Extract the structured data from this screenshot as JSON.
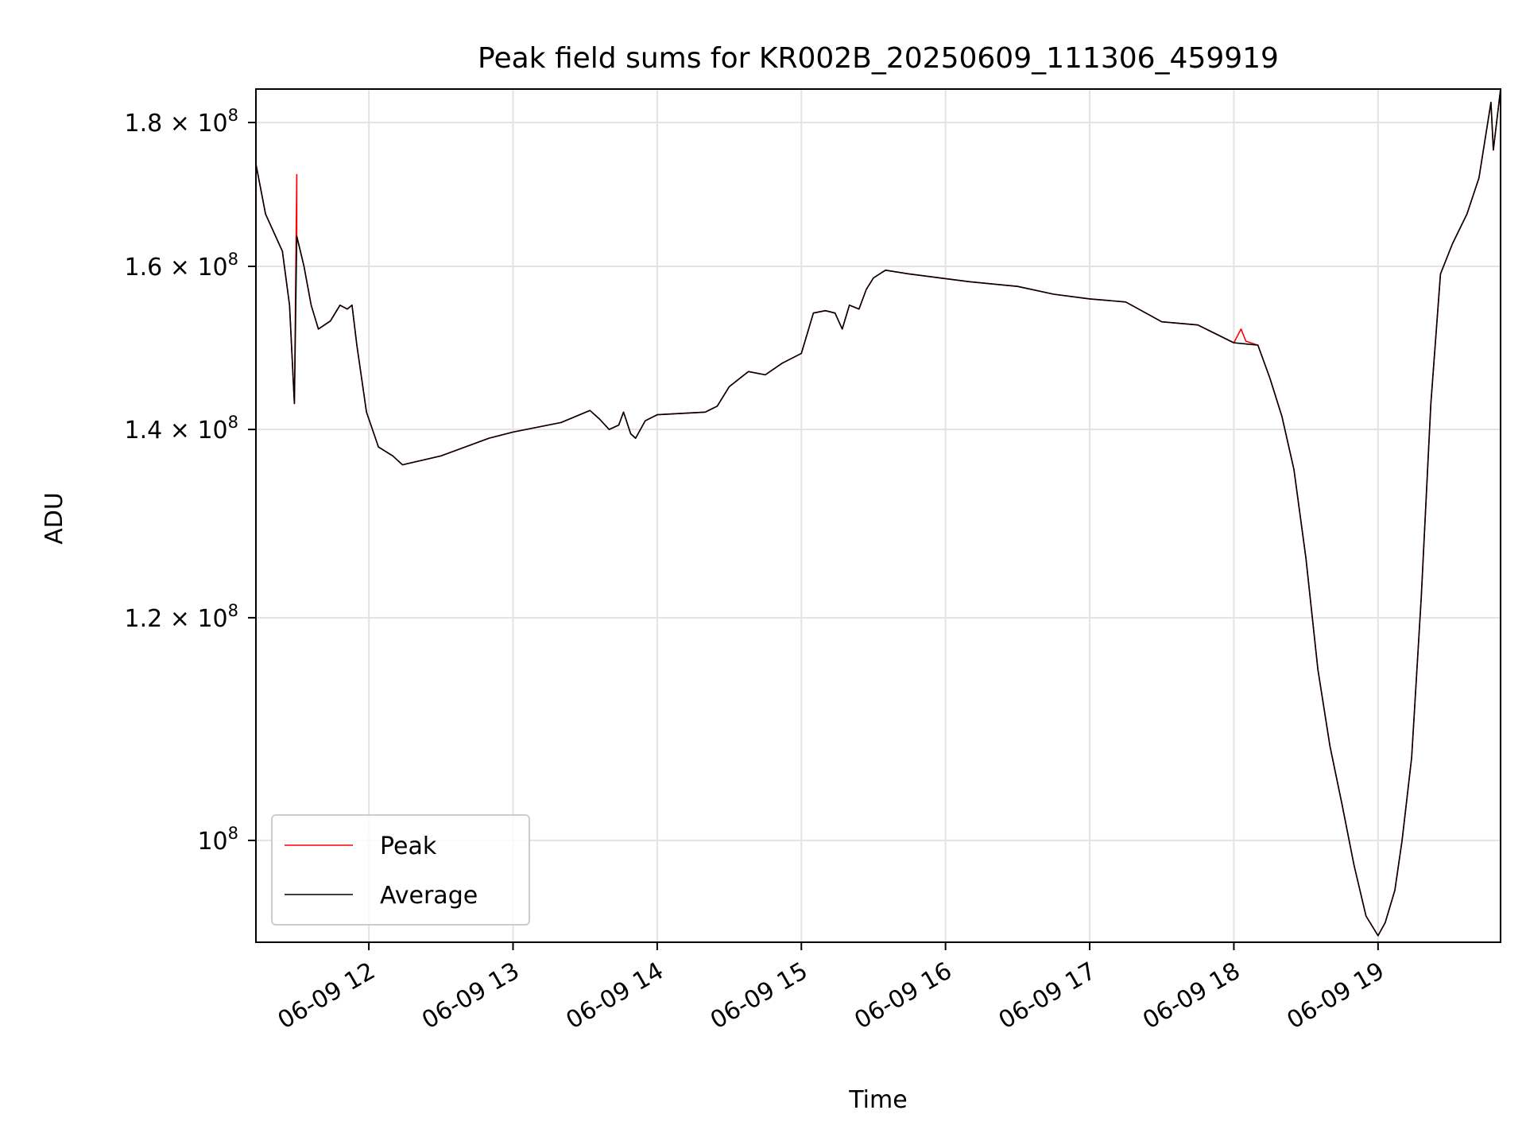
{
  "chart_data": {
    "type": "line",
    "title": "Peak field sums for KR002B_20250609_111306_459919",
    "xlabel": "Time",
    "ylabel": "ADU",
    "y_scale": "log",
    "xlim": [
      "2025-06-09 11:13",
      "2025-06-09 19:51"
    ],
    "ylim": [
      92000000,
      185000000
    ],
    "x_ticks": [
      {
        "value": "2025-06-09 12:00",
        "label": "06-09 12"
      },
      {
        "value": "2025-06-09 13:00",
        "label": "06-09 13"
      },
      {
        "value": "2025-06-09 14:00",
        "label": "06-09 14"
      },
      {
        "value": "2025-06-09 15:00",
        "label": "06-09 15"
      },
      {
        "value": "2025-06-09 16:00",
        "label": "06-09 16"
      },
      {
        "value": "2025-06-09 17:00",
        "label": "06-09 17"
      },
      {
        "value": "2025-06-09 18:00",
        "label": "06-09 18"
      },
      {
        "value": "2025-06-09 19:00",
        "label": "06-09 19"
      }
    ],
    "y_ticks": [
      {
        "value": 100000000,
        "mantissa": "",
        "exponent": "8"
      },
      {
        "value": 120000000,
        "mantissa": "1.2",
        "exponent": "8"
      },
      {
        "value": 140000000,
        "mantissa": "1.4",
        "exponent": "8"
      },
      {
        "value": 160000000,
        "mantissa": "1.6",
        "exponent": "8"
      },
      {
        "value": 180000000,
        "mantissa": "1.8",
        "exponent": "8"
      }
    ],
    "grid": true,
    "legend_position": "lower-left",
    "series": [
      {
        "name": "Average",
        "color": "#000000",
        "points": [
          [
            "2025-06-09 11:13",
            174000000
          ],
          [
            "2025-06-09 11:17",
            167000000
          ],
          [
            "2025-06-09 11:24",
            162000000
          ],
          [
            "2025-06-09 11:27",
            155000000
          ],
          [
            "2025-06-09 11:29",
            143000000
          ],
          [
            "2025-06-09 11:30",
            164000000
          ],
          [
            "2025-06-09 11:33",
            160000000
          ],
          [
            "2025-06-09 11:36",
            155000000
          ],
          [
            "2025-06-09 11:39",
            152000000
          ],
          [
            "2025-06-09 11:44",
            153000000
          ],
          [
            "2025-06-09 11:48",
            155000000
          ],
          [
            "2025-06-09 11:51",
            154500000
          ],
          [
            "2025-06-09 11:53",
            155000000
          ],
          [
            "2025-06-09 11:55",
            150000000
          ],
          [
            "2025-06-09 11:59",
            142000000
          ],
          [
            "2025-06-09 12:04",
            138000000
          ],
          [
            "2025-06-09 12:10",
            137000000
          ],
          [
            "2025-06-09 12:14",
            136000000
          ],
          [
            "2025-06-09 12:30",
            137000000
          ],
          [
            "2025-06-09 12:50",
            139000000
          ],
          [
            "2025-06-09 13:00",
            139700000
          ],
          [
            "2025-06-09 13:20",
            140800000
          ],
          [
            "2025-06-09 13:32",
            142200000
          ],
          [
            "2025-06-09 13:36",
            141200000
          ],
          [
            "2025-06-09 13:40",
            140000000
          ],
          [
            "2025-06-09 13:44",
            140500000
          ],
          [
            "2025-06-09 13:46",
            142000000
          ],
          [
            "2025-06-09 13:49",
            139500000
          ],
          [
            "2025-06-09 13:51",
            139000000
          ],
          [
            "2025-06-09 13:55",
            141000000
          ],
          [
            "2025-06-09 14:00",
            141700000
          ],
          [
            "2025-06-09 14:20",
            142000000
          ],
          [
            "2025-06-09 14:25",
            142700000
          ],
          [
            "2025-06-09 14:30",
            145000000
          ],
          [
            "2025-06-09 14:38",
            146800000
          ],
          [
            "2025-06-09 14:45",
            146400000
          ],
          [
            "2025-06-09 14:52",
            147800000
          ],
          [
            "2025-06-09 15:00",
            149000000
          ],
          [
            "2025-06-09 15:05",
            154000000
          ],
          [
            "2025-06-09 15:10",
            154300000
          ],
          [
            "2025-06-09 15:14",
            154000000
          ],
          [
            "2025-06-09 15:17",
            152000000
          ],
          [
            "2025-06-09 15:20",
            155000000
          ],
          [
            "2025-06-09 15:24",
            154500000
          ],
          [
            "2025-06-09 15:27",
            157000000
          ],
          [
            "2025-06-09 15:30",
            158500000
          ],
          [
            "2025-06-09 15:35",
            159500000
          ],
          [
            "2025-06-09 15:45",
            159000000
          ],
          [
            "2025-06-09 16:00",
            158400000
          ],
          [
            "2025-06-09 16:10",
            158000000
          ],
          [
            "2025-06-09 16:30",
            157400000
          ],
          [
            "2025-06-09 16:45",
            156400000
          ],
          [
            "2025-06-09 17:00",
            155800000
          ],
          [
            "2025-06-09 17:15",
            155400000
          ],
          [
            "2025-06-09 17:30",
            152900000
          ],
          [
            "2025-06-09 17:45",
            152500000
          ],
          [
            "2025-06-09 18:00",
            150300000
          ],
          [
            "2025-06-09 18:10",
            150000000
          ],
          [
            "2025-06-09 18:15",
            146000000
          ],
          [
            "2025-06-09 18:20",
            141500000
          ],
          [
            "2025-06-09 18:25",
            135500000
          ],
          [
            "2025-06-09 18:30",
            126000000
          ],
          [
            "2025-06-09 18:35",
            115000000
          ],
          [
            "2025-06-09 18:40",
            108000000
          ],
          [
            "2025-06-09 18:45",
            103000000
          ],
          [
            "2025-06-09 18:50",
            98000000
          ],
          [
            "2025-06-09 18:55",
            94000000
          ],
          [
            "2025-06-09 19:00",
            92500000
          ],
          [
            "2025-06-09 19:03",
            93500000
          ],
          [
            "2025-06-09 19:07",
            96000000
          ],
          [
            "2025-06-09 19:10",
            100000000
          ],
          [
            "2025-06-09 19:14",
            107000000
          ],
          [
            "2025-06-09 19:18",
            122000000
          ],
          [
            "2025-06-09 19:22",
            143000000
          ],
          [
            "2025-06-09 19:26",
            159000000
          ],
          [
            "2025-06-09 19:31",
            163000000
          ],
          [
            "2025-06-09 19:37",
            167000000
          ],
          [
            "2025-06-09 19:42",
            172000000
          ],
          [
            "2025-06-09 19:47",
            183000000
          ],
          [
            "2025-06-09 19:48",
            176000000
          ],
          [
            "2025-06-09 19:51",
            185000000
          ]
        ]
      },
      {
        "name": "Peak",
        "color": "#ff0000",
        "points": [
          [
            "2025-06-09 11:13",
            174000000
          ],
          [
            "2025-06-09 11:17",
            167000000
          ],
          [
            "2025-06-09 11:24",
            162000000
          ],
          [
            "2025-06-09 11:27",
            155000000
          ],
          [
            "2025-06-09 11:29",
            143000000
          ],
          [
            "2025-06-09 11:30",
            172500000
          ],
          [
            "2025-06-09 11:30",
            164000000
          ],
          [
            "2025-06-09 11:33",
            160000000
          ],
          [
            "2025-06-09 11:36",
            155000000
          ],
          [
            "2025-06-09 11:39",
            152000000
          ],
          [
            "2025-06-09 11:44",
            153000000
          ],
          [
            "2025-06-09 11:48",
            155000000
          ],
          [
            "2025-06-09 11:51",
            154500000
          ],
          [
            "2025-06-09 11:53",
            155000000
          ],
          [
            "2025-06-09 11:55",
            150000000
          ],
          [
            "2025-06-09 11:59",
            142000000
          ],
          [
            "2025-06-09 12:04",
            138000000
          ],
          [
            "2025-06-09 12:10",
            137000000
          ],
          [
            "2025-06-09 12:14",
            136000000
          ],
          [
            "2025-06-09 12:30",
            137000000
          ],
          [
            "2025-06-09 12:50",
            139000000
          ],
          [
            "2025-06-09 13:00",
            139700000
          ],
          [
            "2025-06-09 13:20",
            140800000
          ],
          [
            "2025-06-09 13:32",
            142200000
          ],
          [
            "2025-06-09 13:36",
            141200000
          ],
          [
            "2025-06-09 13:40",
            140000000
          ],
          [
            "2025-06-09 13:44",
            140500000
          ],
          [
            "2025-06-09 13:46",
            142000000
          ],
          [
            "2025-06-09 13:49",
            139500000
          ],
          [
            "2025-06-09 13:51",
            139000000
          ],
          [
            "2025-06-09 13:55",
            141000000
          ],
          [
            "2025-06-09 14:00",
            141700000
          ],
          [
            "2025-06-09 14:20",
            142000000
          ],
          [
            "2025-06-09 14:25",
            142700000
          ],
          [
            "2025-06-09 14:30",
            145000000
          ],
          [
            "2025-06-09 14:38",
            146800000
          ],
          [
            "2025-06-09 14:45",
            146400000
          ],
          [
            "2025-06-09 14:52",
            147800000
          ],
          [
            "2025-06-09 15:00",
            149000000
          ],
          [
            "2025-06-09 15:05",
            154000000
          ],
          [
            "2025-06-09 15:10",
            154300000
          ],
          [
            "2025-06-09 15:14",
            154000000
          ],
          [
            "2025-06-09 15:17",
            152000000
          ],
          [
            "2025-06-09 15:20",
            155000000
          ],
          [
            "2025-06-09 15:24",
            154500000
          ],
          [
            "2025-06-09 15:27",
            157000000
          ],
          [
            "2025-06-09 15:30",
            158500000
          ],
          [
            "2025-06-09 15:35",
            159500000
          ],
          [
            "2025-06-09 15:45",
            159000000
          ],
          [
            "2025-06-09 16:00",
            158400000
          ],
          [
            "2025-06-09 16:10",
            158000000
          ],
          [
            "2025-06-09 16:30",
            157400000
          ],
          [
            "2025-06-09 16:45",
            156400000
          ],
          [
            "2025-06-09 17:00",
            155800000
          ],
          [
            "2025-06-09 17:15",
            155400000
          ],
          [
            "2025-06-09 17:30",
            152900000
          ],
          [
            "2025-06-09 17:45",
            152500000
          ],
          [
            "2025-06-09 18:00",
            150300000
          ],
          [
            "2025-06-09 18:03",
            152000000
          ],
          [
            "2025-06-09 18:05",
            150500000
          ],
          [
            "2025-06-09 18:10",
            150000000
          ],
          [
            "2025-06-09 18:15",
            146000000
          ],
          [
            "2025-06-09 18:20",
            141500000
          ],
          [
            "2025-06-09 18:25",
            135500000
          ],
          [
            "2025-06-09 18:30",
            126000000
          ],
          [
            "2025-06-09 18:35",
            115000000
          ],
          [
            "2025-06-09 18:40",
            108000000
          ],
          [
            "2025-06-09 18:45",
            103000000
          ],
          [
            "2025-06-09 18:50",
            98000000
          ],
          [
            "2025-06-09 18:55",
            94000000
          ],
          [
            "2025-06-09 19:00",
            92500000
          ],
          [
            "2025-06-09 19:03",
            93500000
          ],
          [
            "2025-06-09 19:07",
            96000000
          ],
          [
            "2025-06-09 19:10",
            100000000
          ],
          [
            "2025-06-09 19:14",
            107000000
          ],
          [
            "2025-06-09 19:18",
            122000000
          ],
          [
            "2025-06-09 19:22",
            143000000
          ],
          [
            "2025-06-09 19:26",
            159000000
          ],
          [
            "2025-06-09 19:31",
            163000000
          ],
          [
            "2025-06-09 19:37",
            167000000
          ],
          [
            "2025-06-09 19:42",
            172000000
          ],
          [
            "2025-06-09 19:47",
            183000000
          ],
          [
            "2025-06-09 19:48",
            176000000
          ],
          [
            "2025-06-09 19:51",
            185000000
          ]
        ]
      }
    ],
    "legend": [
      {
        "label": "Peak",
        "color": "#ff0000"
      },
      {
        "label": "Average",
        "color": "#000000"
      }
    ]
  }
}
